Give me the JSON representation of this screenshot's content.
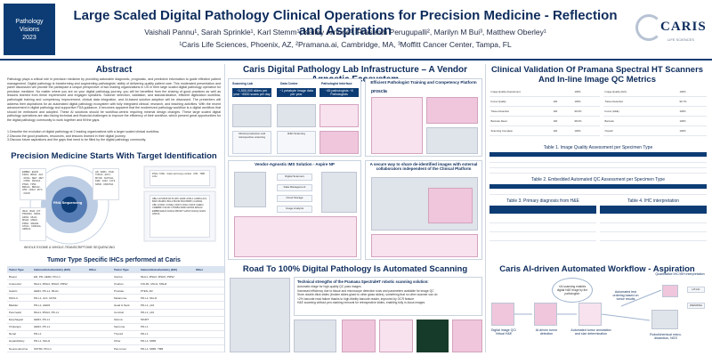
{
  "header": {
    "brand_lines": [
      "Pathology",
      "Visions",
      "2023"
    ],
    "title": "Large Scaled Digital Pathology Clinical Operations for Precision Medicine - Reflection and Aspiration",
    "authors": "Vaishali Pannu¹, Sarah Sprinkle¹, Karl Stemm¹, Kailey Arnone¹, Prasanth Perugupalli², Marilyn M Bui³, Matthew Oberley¹",
    "affiliations": "¹Caris Life Sciences, Phoenix, AZ, ²Pramana.ai, Cambridge, MA, ³Moffitt Cancer Center, Tampa, FL",
    "logo_text": "CARIS",
    "logo_sub": "LIFE SCIENCES"
  },
  "abstract": {
    "title": "Abstract",
    "body": "Pathology plays a critical role in precision medicine by providing actionable diagnostic, prognostic, and predictive information to guide effective patient management. Digital pathology is transforming and augmenting pathologists' ability of delivering quality patient care. This moderated presentation and panel discussion will provide the participant a unique perspective of two leading organizations in US in their large scaled digital pathology operation for precision medicine. No matter where you are on your digital pathology journey, you will be benefited from the sharing of good practices as well as lessons learned from these experienced and engaged speakers. Scanner selection, validation, and standardization, efficient digitization workflow, pathologist training and competency improvement, clinical data integration, and AI-based solution adoption will be discussed. The presenters will address their aspirations for an automated digital pathology ecosystem with fully integrated clinical, research, and teaching activities. With the recent advancement in digital pathology and supportive FDA guidance, it becomes apparent that the modernized pathology workflow is a digital workflow that should be embraced and adopted. These AI solutions should be workflow-centric requiring minimal design changes. These large scaled digital pathology operations are also facing technical and financial challenges to improve the efficiency of their workflow, which present great opportunities for the digital pathology community to work together and fill the gaps.",
    "objectives": [
      "1.Describe the evolution of digital pathology at 2 leading organizations with a larger scaled clinical workflow.",
      "2.Discuss the good practices, resources, and lessons learned in their digital journey.",
      "3.Discuss future aspirations and the gaps that need to be filled by the digital pathology community."
    ]
  },
  "precision": {
    "title": "Precision Medicine Starts With Target Identification",
    "center_label": "RNA Sequencing",
    "caption": "WHOLE EXOME & WHOLE-TRANSCRIPTOME SEQUENCING"
  },
  "tumor_table": {
    "title": "Tumor Type Specific IHCs performed at Caris",
    "headers": [
      "Tumor Type",
      "Immunohistochemistry (IHC)",
      "Other",
      "Tumor Type",
      "Immunohistochemistry (IHC)",
      "Other"
    ],
    "rows": [
      [
        "Breast",
        "ER, PR, HER2, PD-L1",
        "",
        "Uterine",
        "MLH1, MSH2, MSH6, PMS2",
        ""
      ],
      [
        "Colorectal",
        "MLH1, MSH2, MSH6, PMS2",
        "",
        "Ovarian",
        "FOLR1, MLH1, MSH2",
        ""
      ],
      [
        "Gastric",
        "HER2, PD-L1, MLH1",
        "",
        "Prostate",
        "PTEN, AR",
        ""
      ],
      [
        "NSCLC",
        "PD-L1, ALK, ROS1",
        "",
        "Melanoma",
        "PD-L1, MLH1",
        ""
      ],
      [
        "Bladder",
        "PD-L1, HER2",
        "",
        "Head & Neck",
        "PD-L1, p16",
        ""
      ],
      [
        "Pancreatic",
        "MLH1, MSH2, PD-L1",
        "",
        "Cervical",
        "PD-L1, p16",
        ""
      ],
      [
        "Esophageal",
        "HER2, PD-L1",
        "",
        "Glioma",
        "MGMT",
        ""
      ],
      [
        "Cholangio",
        "HER2, PD-L1",
        "",
        "Sarcoma",
        "PD-L1",
        ""
      ],
      [
        "Renal",
        "PD-L1",
        "",
        "Thyroid",
        "PD-L1",
        ""
      ],
      [
        "Hepatobiliary",
        "PD-L1, MLH1",
        "",
        "Other",
        "PD-L1, MMR",
        ""
      ],
      [
        "Neuroendocrine",
        "SSTR2, PD-L1",
        "",
        "Pan-tumor",
        "PD-L1, MMR, TMB",
        ""
      ]
    ]
  },
  "infra": {
    "title": "Caris Digital Pathology Lab Infrastructure – A Vendor Agnostic Ecosystem",
    "scanning_lab": "Scanning Lab",
    "scanning_stat": "~1,500,000 slides per year ~6500 scans per day",
    "data_center": "Data Center",
    "data_stat": "~1 petabyte image data per year",
    "path_interface": "Pathologist interface",
    "path_stat": "~45 pathologists ~8 Pathologists",
    "platform_title": "Efficient Pathologist Training and Competency Platform",
    "platform_brand": "proscia",
    "clinical": "Clinical production and retrospective scanning",
    "qa": "R&D Scanning",
    "ims": "Vendor-Agnostic IMS Solution - Aspire NP",
    "ims_items": [
      "Digital Scanners",
      "Data Management",
      "Cloud Storage",
      "Image Analysis"
    ],
    "share_caption": "A secure way to share de-identified images with external collaborators independent of the Clinical Platform"
  },
  "road": {
    "title": "Road To 100% Digital Pathology Is Automated Scanning",
    "box_title": "Technical strengths of the Pramana SpectralHT robotic scanning solution:",
    "bullets": [
      "Automatic triage for high-quality QC pass images",
      "Increased efficiency due to tissue and microscope detection tools and parameters available for image QC",
      "Store double-thick slides (broken slides glued to other glass slides), something that no other scanner can do",
      "<2% barcode read failure thanks to high-fidelity barcode reader, improved by OCR feature",
      "H&E scanning without pen-marking removal for retrospective slides, enabling fully in-focus images"
    ]
  },
  "qc": {
    "title": "Clinical Validation Of Pramana Spectral HT Scanners And In-line Image QC Metrics",
    "table1_caption": "Table 1. Image Quality Assessment per Specimen Type",
    "table2_caption": "Table 2. Embedded Automated QC Assessment per Specimen Type",
    "table3_caption": "Table 3. Primary diagnosis from H&E",
    "table4_caption": "Table 4. IHC interpretation",
    "summary_rows": [
      [
        "Image Quality Assessment",
        "",
        "100%"
      ],
      [
        "Focus Quality",
        "100",
        "100%"
      ],
      [
        "Tissue Detection",
        "100",
        "99.6%"
      ],
      [
        "Barcode Read",
        "100",
        "98.0%"
      ],
      [
        "Scanning Complete",
        "100",
        "100%"
      ]
    ],
    "right_rows": [
      [
        "Image Quality (IHC)",
        "100%"
      ],
      [
        "Tissue Detection",
        "99.7%"
      ],
      [
        "Focus (H&E)",
        "100%"
      ],
      [
        "Barcode",
        "100%"
      ],
      [
        "Overall",
        "100%"
      ]
    ]
  },
  "ai": {
    "title": "Caris AI-driven Automated Workflow - Aspiration",
    "circle_text": "«AI scanning enables digital H&E triage by the pathologist»",
    "nodes": [
      "Digital image QC/ Virtual H&E",
      "AI-driven tumor detection",
      "Automated tumor annotation and size determination",
      "Robot/chemical micro-dissection, NGS"
    ],
    "side_label_top": "Quantitative IHC/ISH interpretation",
    "side_label_mid": "Automated test ordering based on tumor results",
    "side_tag_1": "HT-HC",
    "side_tag_2": "WES/RNA"
  }
}
